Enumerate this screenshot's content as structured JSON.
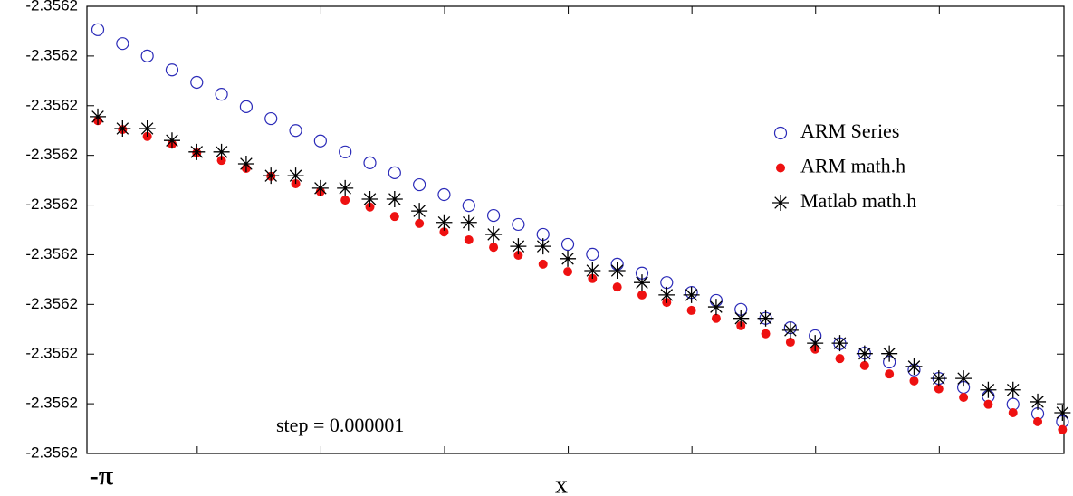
{
  "chart_data": {
    "type": "scatter",
    "xlabel": "x",
    "annotation": "step = 0.000001",
    "xlim": [
      -3.14159265,
      -3.14155315
    ],
    "ylim": [
      -2.356195,
      -2.3561941
    ],
    "xticks": [
      {
        "value": -3.14159265,
        "label": "-π"
      },
      -3.14158819,
      -3.14158319,
      -3.14157819,
      -3.14157319,
      -3.14156819,
      -3.14156319,
      -3.14155819
    ],
    "yticks": [
      {
        "value": -2.3561941,
        "label": "-2.3562"
      },
      {
        "value": -2.3561942,
        "label": "-2.3562"
      },
      {
        "value": -2.3561943,
        "label": "-2.3562"
      },
      {
        "value": -2.3561944,
        "label": "-2.3562"
      },
      {
        "value": -2.3561945,
        "label": "-2.3562"
      },
      {
        "value": -2.3561946,
        "label": "-2.3562"
      },
      {
        "value": -2.3561947,
        "label": "-2.3562"
      },
      {
        "value": -2.3561948,
        "label": "-2.3562"
      },
      {
        "value": -2.3561949,
        "label": "-2.3562"
      },
      {
        "value": -2.356195,
        "label": "-2.3562"
      }
    ],
    "x": [
      -3.14159221,
      -3.14159121,
      -3.14159021,
      -3.14158921,
      -3.14158821,
      -3.14158721,
      -3.14158621,
      -3.14158521,
      -3.14158421,
      -3.14158321,
      -3.14158221,
      -3.14158121,
      -3.14158021,
      -3.14157921,
      -3.14157821,
      -3.14157721,
      -3.14157621,
      -3.14157521,
      -3.14157421,
      -3.14157321,
      -3.14157221,
      -3.14157121,
      -3.14157021,
      -3.14156921,
      -3.14156821,
      -3.14156721,
      -3.14156621,
      -3.14156521,
      -3.14156421,
      -3.14156321,
      -3.14156221,
      -3.14156121,
      -3.14156021,
      -3.14155921,
      -3.14155821,
      -3.14155721,
      -3.14155621,
      -3.14155521,
      -3.14155421,
      -3.14155321
    ],
    "series": [
      {
        "name": "ARM Series",
        "color": "#2a2ab8",
        "marker": "circle",
        "values": [
          -2.356194147,
          -2.356194175,
          -2.3561942,
          -2.356194228,
          -2.356194253,
          -2.356194277,
          -2.356194302,
          -2.356194326,
          -2.35619435,
          -2.356194371,
          -2.356194393,
          -2.356194415,
          -2.356194435,
          -2.356194459,
          -2.356194479,
          -2.356194501,
          -2.356194521,
          -2.356194539,
          -2.356194559,
          -2.356194579,
          -2.356194599,
          -2.356194619,
          -2.356194637,
          -2.356194656,
          -2.356194676,
          -2.356194692,
          -2.35619471,
          -2.356194728,
          -2.356194747,
          -2.356194763,
          -2.356194779,
          -2.356194798,
          -2.356194816,
          -2.356194832,
          -2.356194849,
          -2.356194867,
          -2.356194885,
          -2.356194901,
          -2.35619492,
          -2.356194936
        ]
      },
      {
        "name": "ARM math.h",
        "color": "#ee1111",
        "marker": "dot",
        "values": [
          -2.35619433,
          -2.356194348,
          -2.356194362,
          -2.356194377,
          -2.356194395,
          -2.35619441,
          -2.356194426,
          -2.356194442,
          -2.356194457,
          -2.356194473,
          -2.35619449,
          -2.356194504,
          -2.356194523,
          -2.356194537,
          -2.356194554,
          -2.35619457,
          -2.356194585,
          -2.356194601,
          -2.356194619,
          -2.356194634,
          -2.356194648,
          -2.356194665,
          -2.356194681,
          -2.356194696,
          -2.356194712,
          -2.356194728,
          -2.356194743,
          -2.356194759,
          -2.356194776,
          -2.35619479,
          -2.356194809,
          -2.356194823,
          -2.35619484,
          -2.356194854,
          -2.35619487,
          -2.356194887,
          -2.356194901,
          -2.356194918,
          -2.356194936,
          -2.356194952
        ]
      },
      {
        "name": "Matlab math.h",
        "color": "#000000",
        "marker": "star",
        "values": [
          -2.356194322,
          -2.356194346,
          -2.356194346,
          -2.35619437,
          -2.356194393,
          -2.356194393,
          -2.356194417,
          -2.356194441,
          -2.356194441,
          -2.356194466,
          -2.356194466,
          -2.356194488,
          -2.356194488,
          -2.356194512,
          -2.356194535,
          -2.356194535,
          -2.356194559,
          -2.356194583,
          -2.356194583,
          -2.356194608,
          -2.356194632,
          -2.356194632,
          -2.356194656,
          -2.356194681,
          -2.356194681,
          -2.356194705,
          -2.356194728,
          -2.356194728,
          -2.356194752,
          -2.356194778,
          -2.356194778,
          -2.356194799,
          -2.356194799,
          -2.356194825,
          -2.356194849,
          -2.356194849,
          -2.356194872,
          -2.356194872,
          -2.356194896,
          -2.356194918
        ]
      }
    ]
  }
}
